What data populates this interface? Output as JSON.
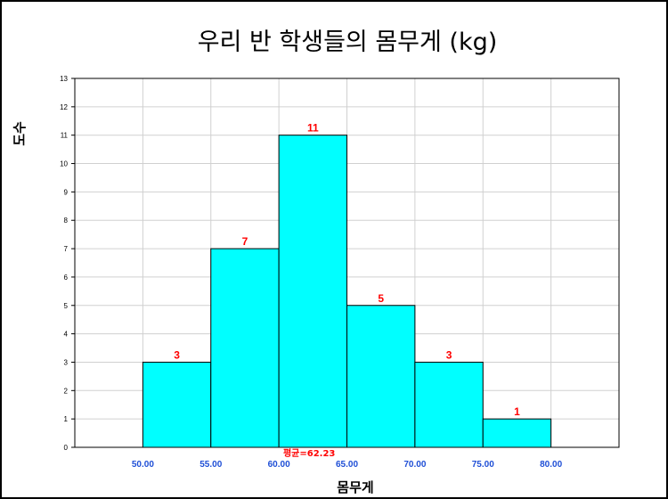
{
  "chart_data": {
    "type": "histogram",
    "title": "우리 반 학생들의 몸무게 (kg)",
    "xlabel": "몸무게",
    "ylabel": "도수",
    "bins": [
      {
        "start": 50,
        "end": 55,
        "count": 3
      },
      {
        "start": 55,
        "end": 60,
        "count": 7
      },
      {
        "start": 60,
        "end": 65,
        "count": 11
      },
      {
        "start": 65,
        "end": 70,
        "count": 5
      },
      {
        "start": 70,
        "end": 75,
        "count": 3
      },
      {
        "start": 75,
        "end": 80,
        "count": 1
      }
    ],
    "xlim": [
      45,
      85
    ],
    "ylim": [
      0,
      13
    ],
    "xticks": [
      "50.00",
      "55.00",
      "60.00",
      "65.00",
      "70.00",
      "75.00",
      "80.00"
    ],
    "yticks": [
      0,
      1,
      2,
      3,
      4,
      5,
      6,
      7,
      8,
      9,
      10,
      11,
      12,
      13
    ],
    "mean": 62.23,
    "mean_label": "평균=62.23",
    "grid": true,
    "colors": {
      "bar_fill": "#00ffff",
      "bar_stroke": "#000000",
      "bar_label": "#ff0000",
      "xtick_label": "#1f4fd6",
      "grid": "#d0d0d0"
    }
  }
}
